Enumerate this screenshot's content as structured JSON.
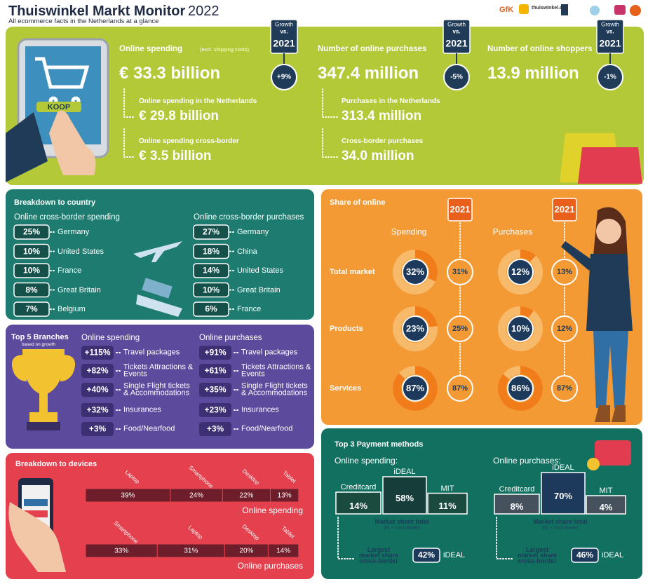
{
  "header": {
    "title": "Thuiswinkel Markt Monitor",
    "year": "2022",
    "subtitle": "All ecommerce facts in the Netherlands at a glance",
    "logos": [
      "GfK",
      "thuiswinkel.org"
    ]
  },
  "overview": {
    "button": "KOOP",
    "growth": {
      "label": "Growth",
      "vs": "vs.",
      "year": "2021"
    },
    "stats": [
      {
        "label": "Online spending",
        "note": "(excl. shipping costs)",
        "value": "€ 33.3 billion",
        "growth": "+9%",
        "details": [
          {
            "label": "Online spending in the Netherlands",
            "value": "€ 29.8 billion"
          },
          {
            "label": "Online spending cross-border",
            "value": "€ 3.5 billion"
          }
        ]
      },
      {
        "label": "Number of online purchases",
        "value": "347.4 million",
        "growth": "-5%",
        "details": [
          {
            "label": "Purchases in the Netherlands",
            "value": "313.4 million"
          },
          {
            "label": "Cross-border purchases",
            "value": "34.0 million"
          }
        ]
      },
      {
        "label": "Number of online shoppers",
        "value": "13.9 million",
        "growth": "-1%"
      }
    ]
  },
  "country": {
    "title": "Breakdown to country",
    "lists": [
      {
        "title": "Online cross-border spending",
        "rows": [
          {
            "share": "25%",
            "name": "Germany"
          },
          {
            "share": "10%",
            "name": "United States"
          },
          {
            "share": "10%",
            "name": "France"
          },
          {
            "share": "8%",
            "name": "Great Britain"
          },
          {
            "share": "7%",
            "name": "Belgium"
          }
        ]
      },
      {
        "title": "Online cross-border purchases",
        "rows": [
          {
            "share": "27%",
            "name": "Germany"
          },
          {
            "share": "18%",
            "name": "China"
          },
          {
            "share": "14%",
            "name": "United States"
          },
          {
            "share": "10%",
            "name": "Great Britain"
          },
          {
            "share": "6%",
            "name": "France"
          }
        ]
      }
    ]
  },
  "branches": {
    "title": "Top 5 Branches",
    "subtitle": "based on growth",
    "lists": [
      {
        "title": "Online spending",
        "rows": [
          {
            "growth": "+115%",
            "name": "Travel packages"
          },
          {
            "growth": "+82%",
            "name": "Tickets Attractions & Events"
          },
          {
            "growth": "+40%",
            "name": "Single Flight tickets & Accommodations"
          },
          {
            "growth": "+32%",
            "name": "Insurances"
          },
          {
            "growth": "+3%",
            "name": "Food/Nearfood"
          }
        ]
      },
      {
        "title": "Online purchases",
        "rows": [
          {
            "growth": "+91%",
            "name": "Travel packages"
          },
          {
            "growth": "+61%",
            "name": "Tickets Attractions & Events"
          },
          {
            "growth": "+35%",
            "name": "Single Flight tickets & Accommodations"
          },
          {
            "growth": "+23%",
            "name": "Insurances"
          },
          {
            "growth": "+3%",
            "name": "Food/Nearfood"
          }
        ]
      }
    ]
  },
  "devices": {
    "title": "Breakdown to devices",
    "charts": [
      {
        "caption": "Online spending",
        "segments": [
          {
            "name": "Laptop",
            "value": 39,
            "label": "39%"
          },
          {
            "name": "Smartphone",
            "value": 24,
            "label": "24%"
          },
          {
            "name": "Desktop",
            "value": 22,
            "label": "22%"
          },
          {
            "name": "Tablet",
            "value": 13,
            "label": "13%"
          }
        ]
      },
      {
        "caption": "Online purchases",
        "segments": [
          {
            "name": "Smartphone",
            "value": 33,
            "label": "33%"
          },
          {
            "name": "Laptop",
            "value": 31,
            "label": "31%"
          },
          {
            "name": "Desktop",
            "value": 20,
            "label": "20%"
          },
          {
            "name": "Tablet",
            "value": 14,
            "label": "14%"
          }
        ]
      }
    ]
  },
  "share": {
    "title": "Share of online",
    "year": "2021",
    "columns": [
      "Spending",
      "Purchases"
    ],
    "rows": [
      {
        "label": "Total market",
        "spending": {
          "value": 32,
          "label": "32%"
        },
        "spending_prev": "31%",
        "purchases": {
          "value": 12,
          "label": "12%"
        },
        "purchases_prev": "13%"
      },
      {
        "label": "Products",
        "spending": {
          "value": 23,
          "label": "23%"
        },
        "spending_prev": "25%",
        "purchases": {
          "value": 10,
          "label": "10%"
        },
        "purchases_prev": "12%"
      },
      {
        "label": "Services",
        "spending": {
          "value": 87,
          "label": "87%"
        },
        "spending_prev": "87%",
        "purchases": {
          "value": 86,
          "label": "86%"
        },
        "purchases_prev": "87%"
      }
    ]
  },
  "payment": {
    "title": "Top 3 Payment methods",
    "total_label": "Market share total",
    "total_note": "(NL + cross-border)",
    "largest_label": "Largest market share cross-border",
    "panels": [
      {
        "title": "Online spending:",
        "methods": [
          {
            "name": "Creditcard",
            "value": 14,
            "label": "14%"
          },
          {
            "name": "iDEAL",
            "value": 58,
            "label": "58%"
          },
          {
            "name": "MIT",
            "value": 11,
            "label": "11%"
          }
        ],
        "largest": {
          "share": "42%",
          "name": "iDEAL"
        }
      },
      {
        "title": "Online purchases:",
        "methods": [
          {
            "name": "Creditcard",
            "value": 8,
            "label": "8%"
          },
          {
            "name": "iDEAL",
            "value": 70,
            "label": "70%"
          },
          {
            "name": "MIT",
            "value": 4,
            "label": "4%"
          }
        ],
        "largest": {
          "share": "46%",
          "name": "iDEAL"
        }
      }
    ]
  }
}
